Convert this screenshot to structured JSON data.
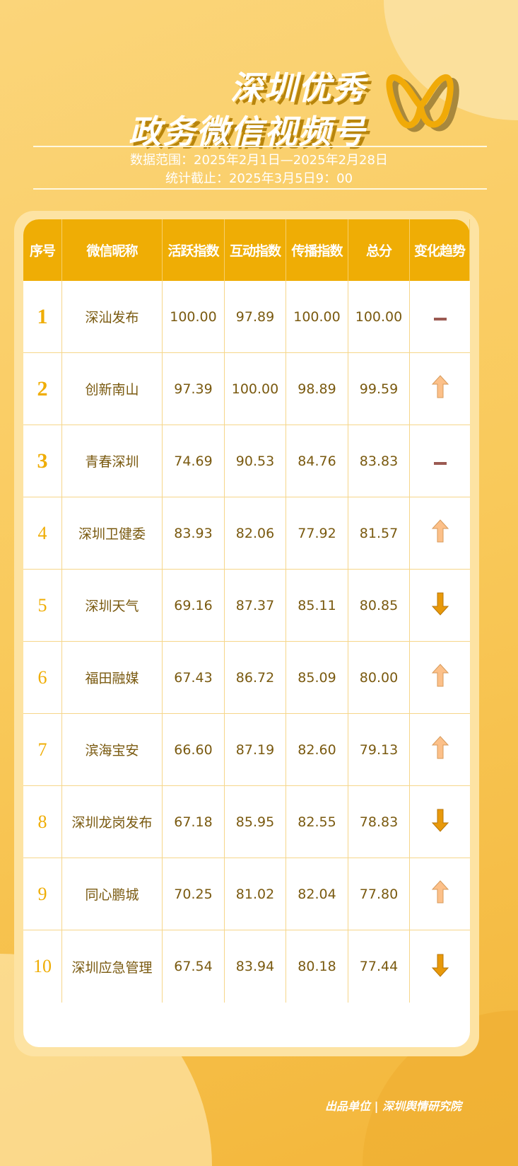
{
  "title": {
    "line1": "深圳优秀",
    "line2": "政务微信视频号"
  },
  "data_range": "数据范围：2025年2月1日—2025年2月28日",
  "cutoff": "统计截止：2025年3月5日9：00",
  "colors": {
    "accent": "#efad05",
    "up": "#fcc089",
    "down": "#e8990a",
    "flat": "#9b5a52",
    "text": "#7a5a10"
  },
  "table": {
    "headers": [
      "序号",
      "微信昵称",
      "活跃指数",
      "互动指数",
      "传播指数",
      "总分",
      "变化趋势"
    ],
    "rows": [
      {
        "rank": "1",
        "name": "深汕发布",
        "active": "100.00",
        "interact": "97.89",
        "spread": "100.00",
        "total": "100.00",
        "trend": "flat"
      },
      {
        "rank": "2",
        "name": "创新南山",
        "active": "97.39",
        "interact": "100.00",
        "spread": "98.89",
        "total": "99.59",
        "trend": "up"
      },
      {
        "rank": "3",
        "name": "青春深圳",
        "active": "74.69",
        "interact": "90.53",
        "spread": "84.76",
        "total": "83.83",
        "trend": "flat"
      },
      {
        "rank": "4",
        "name": "深圳卫健委",
        "active": "83.93",
        "interact": "82.06",
        "spread": "77.92",
        "total": "81.57",
        "trend": "up"
      },
      {
        "rank": "5",
        "name": "深圳天气",
        "active": "69.16",
        "interact": "87.37",
        "spread": "85.11",
        "total": "80.85",
        "trend": "down"
      },
      {
        "rank": "6",
        "name": "福田融媒",
        "active": "67.43",
        "interact": "86.72",
        "spread": "85.09",
        "total": "80.00",
        "trend": "up"
      },
      {
        "rank": "7",
        "name": "滨海宝安",
        "active": "66.60",
        "interact": "87.19",
        "spread": "82.60",
        "total": "79.13",
        "trend": "up"
      },
      {
        "rank": "8",
        "name": "深圳龙岗发布",
        "active": "67.18",
        "interact": "85.95",
        "spread": "82.55",
        "total": "78.83",
        "trend": "down"
      },
      {
        "rank": "9",
        "name": "同心鹏城",
        "active": "70.25",
        "interact": "81.02",
        "spread": "82.04",
        "total": "77.80",
        "trend": "up"
      },
      {
        "rank": "10",
        "name": "深圳应急管理",
        "active": "67.54",
        "interact": "83.94",
        "spread": "80.18",
        "total": "77.44",
        "trend": "down"
      }
    ]
  },
  "footer": "出品单位 | 深圳舆情研究院"
}
